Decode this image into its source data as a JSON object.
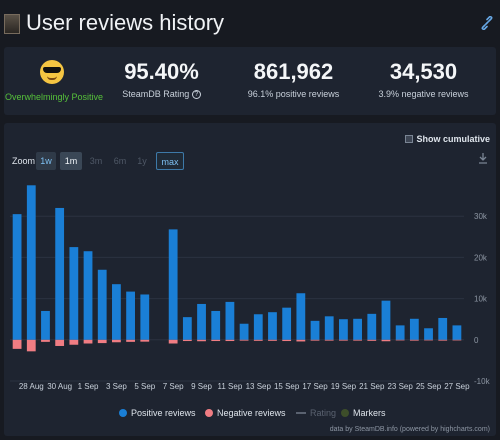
{
  "header": {
    "title": "User reviews history"
  },
  "stats": {
    "rating_word": "Overwhelmingly Positive",
    "rating_value": "95.40%",
    "rating_label": "SteamDB Rating",
    "positive_total": "861,962",
    "positive_sub": "96.1% positive reviews",
    "negative_total": "34,530",
    "negative_sub": "3.9% negative reviews"
  },
  "controls": {
    "show_cumulative": "Show cumulative",
    "zoom_label": "Zoom",
    "zoom_options": [
      "1w",
      "1m",
      "3m",
      "6m",
      "1y",
      "max"
    ]
  },
  "chart_data": {
    "type": "bar",
    "categories": [
      "27 Aug",
      "28 Aug",
      "29 Aug",
      "30 Aug",
      "31 Aug",
      "1 Sep",
      "2 Sep",
      "3 Sep",
      "4 Sep",
      "5 Sep",
      "6 Sep",
      "7 Sep",
      "8 Sep",
      "9 Sep",
      "10 Sep",
      "11 Sep",
      "12 Sep",
      "13 Sep",
      "14 Sep",
      "15 Sep",
      "16 Sep",
      "17 Sep",
      "18 Sep",
      "19 Sep",
      "20 Sep",
      "21 Sep",
      "22 Sep",
      "23 Sep",
      "24 Sep",
      "25 Sep",
      "26 Sep",
      "27 Sep"
    ],
    "x_tick_labels": [
      "28 Aug",
      "30 Aug",
      "1 Sep",
      "3 Sep",
      "5 Sep",
      "7 Sep",
      "9 Sep",
      "11 Sep",
      "13 Sep",
      "15 Sep",
      "17 Sep",
      "19 Sep",
      "21 Sep",
      "23 Sep",
      "25 Sep",
      "27 Sep"
    ],
    "series": [
      {
        "name": "Positive reviews",
        "color": "#1a7fd6",
        "values": [
          30500,
          37500,
          7000,
          32000,
          22500,
          21500,
          17000,
          13500,
          11700,
          11000,
          0,
          26800,
          5500,
          8700,
          7000,
          9200,
          3900,
          6200,
          6700,
          7800,
          11300,
          4600,
          5700,
          5000,
          5100,
          6300,
          9500,
          3500,
          5100,
          2800,
          5300,
          3500
        ]
      },
      {
        "name": "Negative reviews",
        "color": "#f07d83",
        "values": [
          -2200,
          -2800,
          -500,
          -1500,
          -1200,
          -900,
          -800,
          -600,
          -500,
          -450,
          0,
          -900,
          -300,
          -350,
          -300,
          -300,
          -200,
          -250,
          -250,
          -300,
          -400,
          -200,
          -200,
          -200,
          -200,
          -250,
          -350,
          -150,
          -200,
          -150,
          -200,
          -150
        ]
      }
    ],
    "legend": [
      "Positive reviews",
      "Negative reviews",
      "Rating",
      "Markers"
    ],
    "y_ticks": [
      "30k",
      "20k",
      "10k",
      "0",
      "-10k"
    ],
    "ylim": [
      -10000,
      40000
    ],
    "grid": true,
    "legend_position": "bottom-center"
  },
  "footer": {
    "attribution": "data by SteamDB.info (powered by highcharts.com)"
  }
}
